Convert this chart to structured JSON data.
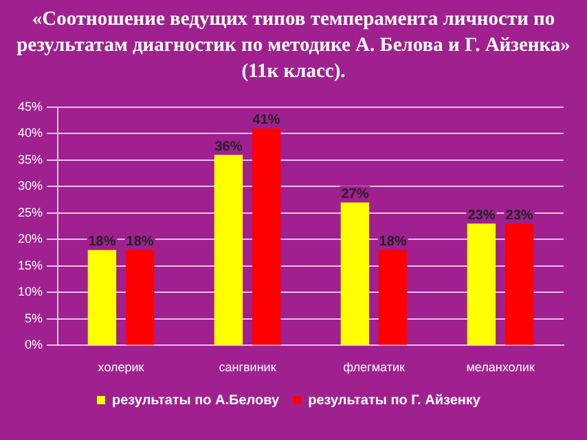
{
  "chart_data": {
    "type": "bar",
    "title": "«Соотношение ведущих типов темперамента личности по результатам диагностик  по методике А. Белова и Г. Айзенка» (11к класс).",
    "categories": [
      "холерик",
      "сангвиник",
      "флегматик",
      "меланхолик"
    ],
    "series": [
      {
        "name": "результаты по А.Белову",
        "color": "#ffff00",
        "values": [
          18,
          36,
          27,
          23
        ],
        "value_labels": [
          "18%",
          "36%",
          "27%",
          "23%"
        ]
      },
      {
        "name": "результаты по Г. Айзенку",
        "color": "#ff0000",
        "values": [
          18,
          41,
          18,
          23
        ],
        "value_labels": [
          "18%",
          "41%",
          "18%",
          "23%"
        ]
      }
    ],
    "ylim": [
      0,
      45
    ],
    "yticks": [
      {
        "value": 0,
        "label": "0%"
      },
      {
        "value": 5,
        "label": "5%"
      },
      {
        "value": 10,
        "label": "10%"
      },
      {
        "value": 15,
        "label": "15%"
      },
      {
        "value": 20,
        "label": "20%"
      },
      {
        "value": 25,
        "label": "25%"
      },
      {
        "value": 30,
        "label": "30%"
      },
      {
        "value": 35,
        "label": "35%"
      },
      {
        "value": 40,
        "label": "40%"
      },
      {
        "value": 45,
        "label": "45%"
      }
    ],
    "grid": "y",
    "legend": "bottom"
  }
}
